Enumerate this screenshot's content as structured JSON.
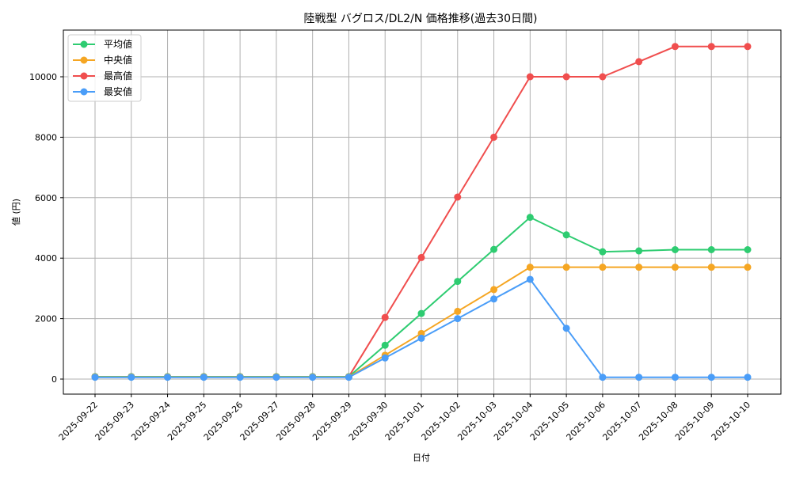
{
  "chart_data": {
    "type": "line",
    "title": "陸戦型 バグロス/DL2/N 価格推移(過去30日間)",
    "xlabel": "日付",
    "ylabel": "値 (円)",
    "x": [
      "2025-09-22",
      "2025-09-23",
      "2025-09-24",
      "2025-09-25",
      "2025-09-26",
      "2025-09-27",
      "2025-09-28",
      "2025-09-29",
      "2025-09-30",
      "2025-10-01",
      "2025-10-02",
      "2025-10-03",
      "2025-10-04",
      "2025-10-05",
      "2025-10-06",
      "2025-10-07",
      "2025-10-08",
      "2025-10-09",
      "2025-10-10"
    ],
    "yticks": [
      0,
      2000,
      4000,
      6000,
      8000,
      10000
    ],
    "ylim": [
      -500,
      11500
    ],
    "grid": true,
    "legend_position": "upper left",
    "series": [
      {
        "name": "平均値",
        "color": "#2ecc71",
        "values": [
          80,
          80,
          80,
          80,
          80,
          80,
          80,
          80,
          1120,
          2170,
          3230,
          4290,
          5350,
          4770,
          4210,
          4240,
          4280,
          4280,
          4280
        ]
      },
      {
        "name": "中央値",
        "color": "#f5a623",
        "values": [
          70,
          70,
          70,
          70,
          70,
          70,
          70,
          70,
          790,
          1510,
          2240,
          2960,
          3700,
          3700,
          3700,
          3700,
          3700,
          3700,
          3700
        ]
      },
      {
        "name": "最高値",
        "color": "#f04e4e",
        "values": [
          80,
          80,
          80,
          80,
          80,
          80,
          80,
          80,
          2040,
          4020,
          6020,
          8000,
          10000,
          10000,
          10000,
          10500,
          11000,
          11000,
          11000
        ]
      },
      {
        "name": "最安値",
        "color": "#4a9df8",
        "values": [
          60,
          60,
          60,
          60,
          60,
          60,
          60,
          60,
          700,
          1350,
          2000,
          2650,
          3300,
          1680,
          60,
          60,
          60,
          60,
          60
        ]
      }
    ]
  }
}
